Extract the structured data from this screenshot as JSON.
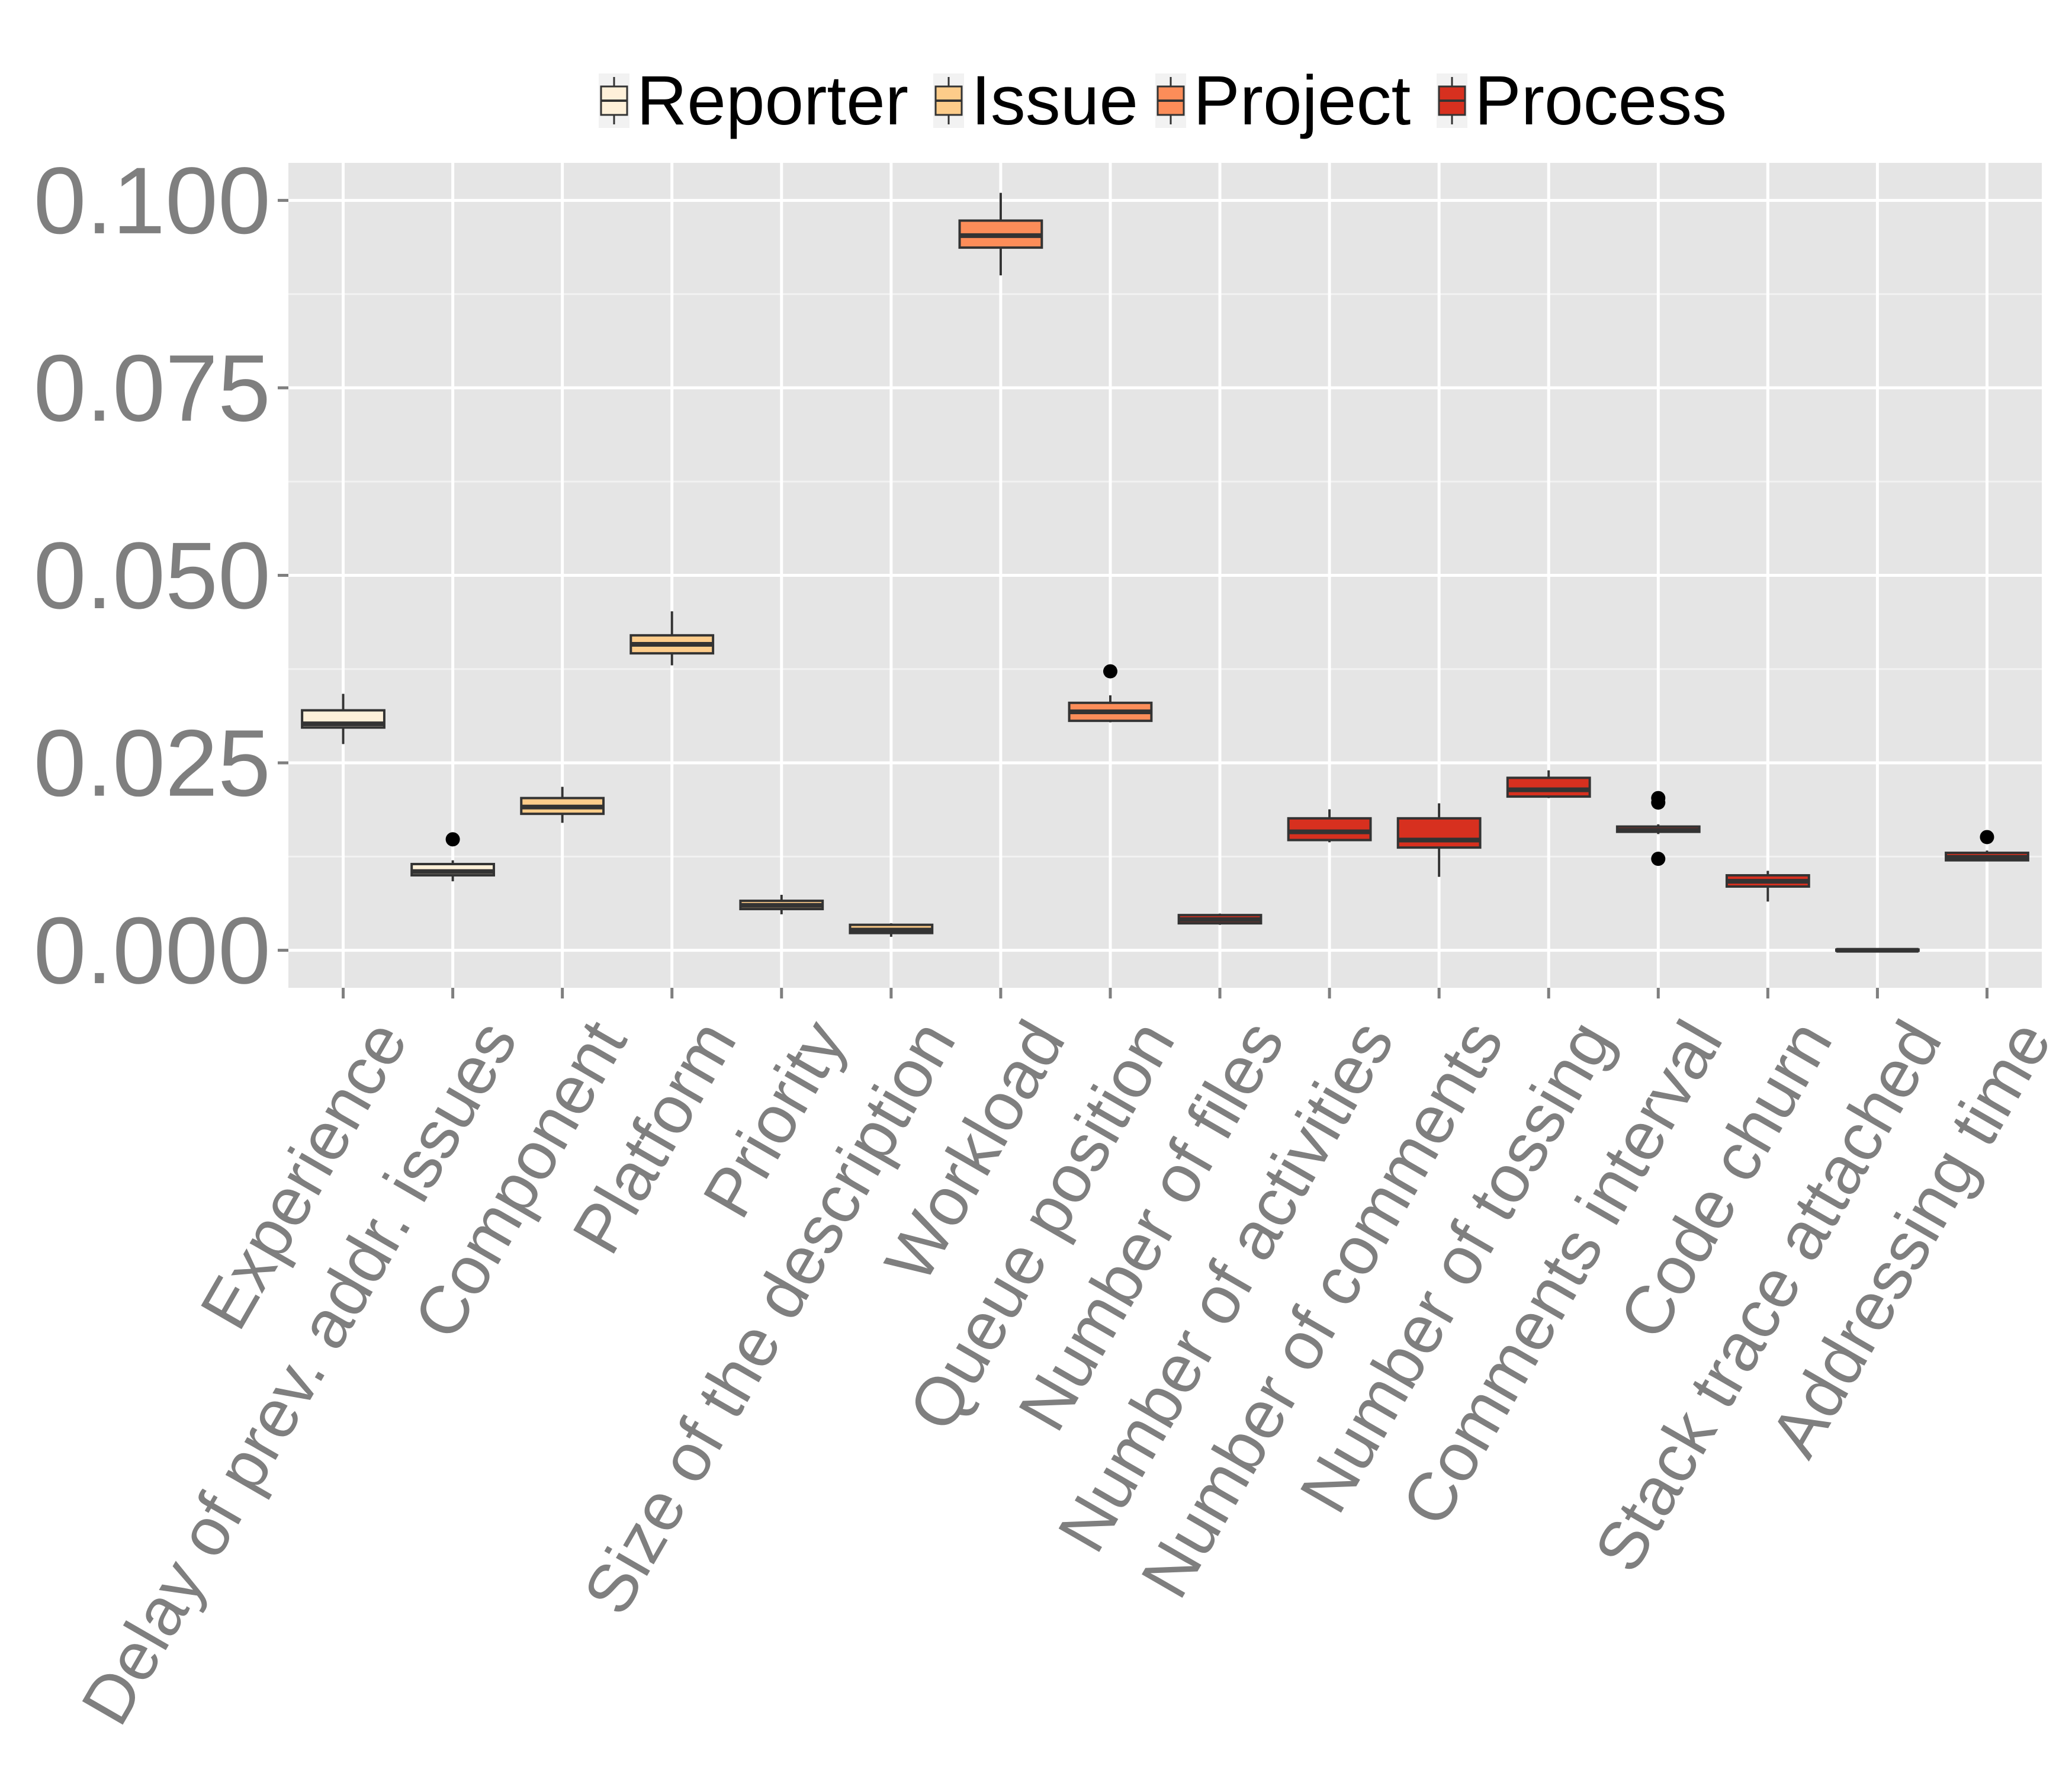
{
  "chart_data": {
    "type": "boxplot",
    "title": "",
    "xlabel": "",
    "ylabel": "",
    "ylim": [
      -0.005,
      0.105
    ],
    "yticks": [
      "0.000",
      "0.025",
      "0.050",
      "0.075",
      "0.100"
    ],
    "ytick_values": [
      0,
      0.025,
      0.05,
      0.075,
      0.1
    ],
    "grid": true,
    "legend": {
      "position": "top",
      "entries": [
        {
          "name": "Reporter",
          "color": "#FEF0D9"
        },
        {
          "name": "Issue",
          "color": "#FDCC8A"
        },
        {
          "name": "Project",
          "color": "#FC8D59"
        },
        {
          "name": "Process",
          "color": "#D7301F"
        }
      ]
    },
    "colors": {
      "panel": "#E5E5E5",
      "grid_major": "#FFFFFF",
      "box_outline": "#333333",
      "tick_text": "#7F7F7F"
    },
    "categories": [
      "Experience",
      "Delay of prev. addr. issues",
      "Component",
      "Platform",
      "Priority",
      "Size of the description",
      "Workload",
      "Queue position",
      "Number of files",
      "Number of activities",
      "Number of comments",
      "Number of tossing",
      "Comments interval",
      "Code churn",
      "Stack trace attached",
      "Addressing time"
    ],
    "boxes": [
      {
        "category": "Experience",
        "group": "Reporter",
        "whisker_low": 0.0275,
        "q1": 0.0297,
        "median": 0.0302,
        "q3": 0.032,
        "whisker_high": 0.0342,
        "outliers": []
      },
      {
        "category": "Delay of prev. addr. issues",
        "group": "Reporter",
        "whisker_low": 0.0092,
        "q1": 0.01,
        "median": 0.0105,
        "q3": 0.0115,
        "whisker_high": 0.012,
        "outliers": [
          0.0148
        ]
      },
      {
        "category": "Component",
        "group": "Issue",
        "whisker_low": 0.017,
        "q1": 0.0182,
        "median": 0.0191,
        "q3": 0.0203,
        "whisker_high": 0.0218,
        "outliers": []
      },
      {
        "category": "Platform",
        "group": "Issue",
        "whisker_low": 0.038,
        "q1": 0.0396,
        "median": 0.0408,
        "q3": 0.042,
        "whisker_high": 0.0452,
        "outliers": []
      },
      {
        "category": "Priority",
        "group": "Issue",
        "whisker_low": 0.0048,
        "q1": 0.0055,
        "median": 0.006,
        "q3": 0.0066,
        "whisker_high": 0.0074,
        "outliers": []
      },
      {
        "category": "Size of the description",
        "group": "Issue",
        "whisker_low": 0.0018,
        "q1": 0.0023,
        "median": 0.0027,
        "q3": 0.0034,
        "whisker_high": 0.0036,
        "outliers": []
      },
      {
        "category": "Workload",
        "group": "Project",
        "whisker_low": 0.09,
        "q1": 0.0937,
        "median": 0.0953,
        "q3": 0.0973,
        "whisker_high": 0.101,
        "outliers": []
      },
      {
        "category": "Queue position",
        "group": "Project",
        "whisker_low": 0.0304,
        "q1": 0.0306,
        "median": 0.0318,
        "q3": 0.033,
        "whisker_high": 0.034,
        "outliers": [
          0.0372
        ]
      },
      {
        "category": "Number of files",
        "group": "Process",
        "whisker_low": 0.0034,
        "q1": 0.0036,
        "median": 0.0041,
        "q3": 0.0047,
        "whisker_high": 0.0049,
        "outliers": []
      },
      {
        "category": "Number of activities",
        "group": "Process",
        "whisker_low": 0.0144,
        "q1": 0.0147,
        "median": 0.0158,
        "q3": 0.0176,
        "whisker_high": 0.0188,
        "outliers": []
      },
      {
        "category": "Number of comments",
        "group": "Process",
        "whisker_low": 0.0098,
        "q1": 0.0137,
        "median": 0.0147,
        "q3": 0.0176,
        "whisker_high": 0.0196,
        "outliers": []
      },
      {
        "category": "Number of tossing",
        "group": "Process",
        "whisker_low": 0.0203,
        "q1": 0.0205,
        "median": 0.0214,
        "q3": 0.023,
        "whisker_high": 0.024,
        "outliers": []
      },
      {
        "category": "Comments interval",
        "group": "Process",
        "whisker_low": 0.0155,
        "q1": 0.0158,
        "median": 0.016,
        "q3": 0.0165,
        "whisker_high": 0.0168,
        "outliers": [
          0.0122,
          0.0197,
          0.0203
        ]
      },
      {
        "category": "Code churn",
        "group": "Process",
        "whisker_low": 0.0065,
        "q1": 0.0085,
        "median": 0.0092,
        "q3": 0.01,
        "whisker_high": 0.0106,
        "outliers": []
      },
      {
        "category": "Stack trace attached",
        "group": "Process",
        "whisker_low": 0.0,
        "q1": 0.0,
        "median": 0.0,
        "q3": 0.0001,
        "whisker_high": 0.0001,
        "outliers": []
      },
      {
        "category": "Addressing time",
        "group": "Process",
        "whisker_low": 0.012,
        "q1": 0.012,
        "median": 0.0124,
        "q3": 0.013,
        "whisker_high": 0.0133,
        "outliers": [
          0.0151
        ]
      }
    ]
  }
}
